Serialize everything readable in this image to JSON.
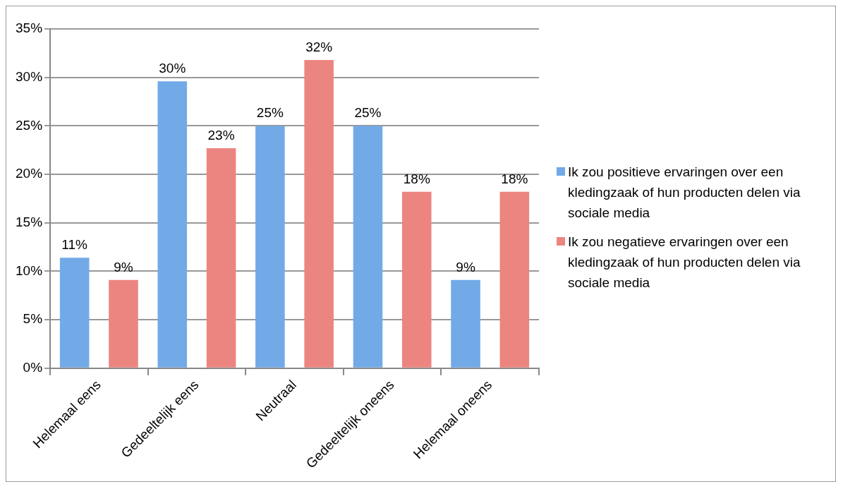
{
  "chart_data": {
    "type": "bar",
    "categories": [
      "Helemaal eens",
      "Gedeeltelijk eens",
      "Neutraal",
      "Gedeeltelijk oneens",
      "Helemaal oneens"
    ],
    "series": [
      {
        "name": "Ik zou positieve ervaringen over een kledingzaak of hun producten delen via sociale media",
        "color": "#72aae8",
        "values": [
          11.4,
          29.6,
          25,
          25,
          9.1
        ],
        "value_labels": [
          "11%",
          "30%",
          "25%",
          "25%",
          "9%"
        ]
      },
      {
        "name": "Ik zou negatieve ervaringen over een kledingzaak of hun producten delen via sociale media",
        "color": "#ec8580",
        "values": [
          9.1,
          22.7,
          31.8,
          18.2,
          18.2
        ],
        "value_labels": [
          "9%",
          "23%",
          "32%",
          "18%",
          "18%"
        ]
      }
    ],
    "ylim": [
      0,
      35
    ],
    "yticks": [
      {
        "value": 0,
        "label": "0%"
      },
      {
        "value": 5,
        "label": "5%"
      },
      {
        "value": 10,
        "label": "10%"
      },
      {
        "value": 15,
        "label": "15%"
      },
      {
        "value": 20,
        "label": "20%"
      },
      {
        "value": 25,
        "label": "25%"
      },
      {
        "value": 30,
        "label": "30%"
      },
      {
        "value": 35,
        "label": "35%"
      }
    ],
    "grid": "y",
    "legend": "right"
  }
}
